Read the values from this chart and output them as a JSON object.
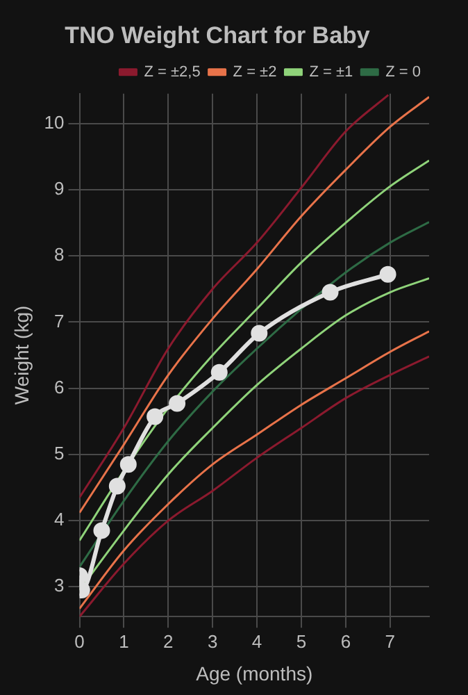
{
  "chart_data": {
    "type": "line",
    "title": "TNO Weight Chart for Baby",
    "xlabel": "Age (months)",
    "ylabel": "Weight (kg)",
    "xlim": [
      0,
      7.88
    ],
    "xticks": [
      0,
      1,
      2,
      3,
      4,
      5,
      6,
      7
    ],
    "ylim": [
      2.55,
      10.45
    ],
    "yticks": [
      3,
      4,
      5,
      6,
      7,
      8,
      9,
      10
    ],
    "grid": true,
    "legend": "top",
    "series": [
      {
        "name": "Z = ±2,5",
        "color": "#8b1a2e",
        "marker": "none",
        "x": [
          0,
          1,
          2,
          3,
          4,
          5,
          6,
          6.96
        ],
        "values": [
          4.35,
          5.4,
          6.6,
          7.5,
          8.2,
          9.03,
          9.88,
          10.43
        ]
      },
      {
        "name": "Z = ±2",
        "color": "#e8734a",
        "marker": "none",
        "x": [
          0,
          1,
          2,
          3,
          4,
          5,
          6,
          7,
          7.88
        ],
        "values": [
          4.12,
          5.15,
          6.2,
          7.05,
          7.8,
          8.6,
          9.3,
          9.95,
          10.4
        ]
      },
      {
        "name": "Z = ±1",
        "color": "#8fd37a",
        "marker": "none",
        "x": [
          0,
          1,
          2,
          3,
          4,
          5,
          6,
          7,
          7.88
        ],
        "values": [
          3.7,
          4.75,
          5.7,
          6.5,
          7.2,
          7.9,
          8.5,
          9.05,
          9.44
        ]
      },
      {
        "name": "Z = 0",
        "color": "#2e6b45",
        "marker": "none",
        "x": [
          0,
          1,
          2,
          3,
          4,
          5,
          6,
          7,
          7.88
        ],
        "values": [
          3.3,
          4.3,
          5.2,
          5.95,
          6.6,
          7.2,
          7.75,
          8.2,
          8.51
        ]
      },
      {
        "color": "#8fd37a",
        "marker": "none",
        "x": [
          0,
          1,
          2,
          3,
          4,
          5,
          6,
          7,
          7.88
        ],
        "values": [
          2.95,
          3.85,
          4.7,
          5.4,
          6.05,
          6.6,
          7.1,
          7.45,
          7.66
        ]
      },
      {
        "color": "#e8734a",
        "marker": "none",
        "x": [
          0,
          1,
          2,
          3,
          4,
          5,
          6,
          7,
          7.88
        ],
        "values": [
          2.67,
          3.55,
          4.25,
          4.85,
          5.3,
          5.75,
          6.15,
          6.55,
          6.86
        ]
      },
      {
        "color": "#8b1a2e",
        "marker": "none",
        "x": [
          0,
          1,
          2,
          3,
          4,
          5,
          6,
          7,
          7.88
        ],
        "values": [
          2.55,
          3.35,
          4.0,
          4.45,
          4.95,
          5.4,
          5.85,
          6.2,
          6.48
        ]
      },
      {
        "color": "#e0e0e0",
        "marker": "circle",
        "x": [
          0,
          0.05,
          0.5,
          0.85,
          1.1,
          1.7,
          2.2,
          3.15,
          4.05,
          5.65,
          6.95
        ],
        "values": [
          3.17,
          2.95,
          3.85,
          4.52,
          4.85,
          5.57,
          5.77,
          6.24,
          6.83,
          7.45,
          7.72
        ]
      }
    ]
  }
}
